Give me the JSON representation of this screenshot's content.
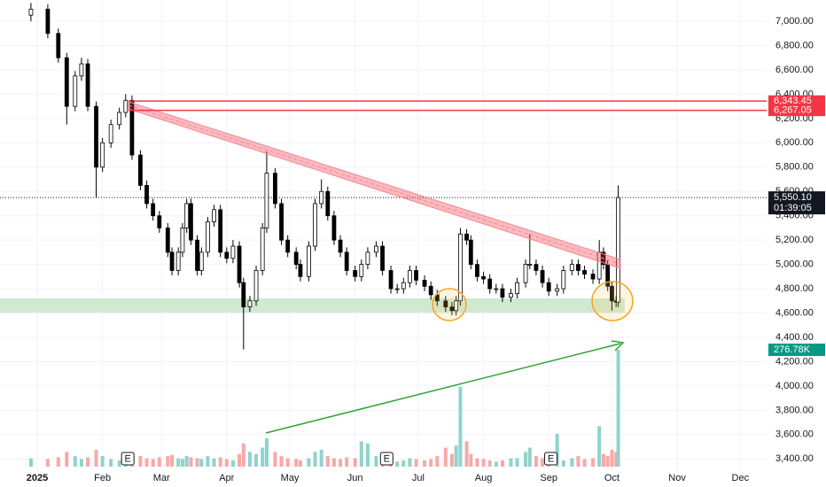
{
  "chart_data": {
    "type": "candlestick",
    "xlim": [
      -17.7,
      346.5
    ],
    "ylim": [
      3300,
      7175
    ],
    "grid": true,
    "xticks": [
      {
        "value": 0,
        "label": "2025"
      },
      {
        "value": 31,
        "label": "Feb"
      },
      {
        "value": 59,
        "label": "Mar"
      },
      {
        "value": 90,
        "label": "Apr"
      },
      {
        "value": 120,
        "label": "May"
      },
      {
        "value": 151,
        "label": "Jun"
      },
      {
        "value": 181,
        "label": "Jul"
      },
      {
        "value": 212,
        "label": "Aug"
      },
      {
        "value": 243,
        "label": "Sep"
      },
      {
        "value": 273,
        "label": "Oct"
      },
      {
        "value": 304,
        "label": "Nov"
      },
      {
        "value": 334,
        "label": "Dec"
      }
    ],
    "yticks": [
      {
        "value": 3400,
        "label": "3,400.00"
      },
      {
        "value": 3600,
        "label": "3,600.00"
      },
      {
        "value": 3800,
        "label": "3,800.00"
      },
      {
        "value": 4000,
        "label": "4,000.00"
      },
      {
        "value": 4200,
        "label": "4,200.00"
      },
      {
        "value": 4400,
        "label": "4,400.00"
      },
      {
        "value": 4600,
        "label": "4,600.00"
      },
      {
        "value": 4800,
        "label": "4,800.00"
      },
      {
        "value": 5000,
        "label": "5,000.00"
      },
      {
        "value": 5200,
        "label": "5,200.00"
      },
      {
        "value": 5400,
        "label": "5,400.00"
      },
      {
        "value": 5600,
        "label": "5,600.00"
      },
      {
        "value": 5800,
        "label": "5,800.00"
      },
      {
        "value": 6000,
        "label": "6,000.00"
      },
      {
        "value": 6200,
        "label": "6,200.00"
      },
      {
        "value": 6400,
        "label": "6,400.00"
      },
      {
        "value": 6600,
        "label": "6,600.00"
      },
      {
        "value": 6800,
        "label": "6,800.00"
      },
      {
        "value": 7000,
        "label": "7,000.00"
      }
    ],
    "up_color": "#ffffff",
    "down_color": "#000000",
    "candles": {
      "x": [
        -3,
        5,
        10,
        14,
        18,
        21,
        24,
        28,
        31,
        35,
        39,
        42,
        45,
        49,
        52,
        55,
        58,
        62,
        64,
        67,
        69,
        71,
        73,
        76,
        78,
        81,
        84,
        87,
        90,
        93,
        96,
        98,
        101,
        104,
        107,
        109,
        113,
        116,
        119,
        123,
        125,
        129,
        132,
        135,
        138,
        141,
        144,
        147,
        151,
        154,
        157,
        161,
        164,
        168,
        171,
        174,
        177,
        180,
        184,
        187,
        190,
        194,
        197,
        199,
        201,
        204,
        206,
        209,
        212,
        215,
        218,
        221,
        225,
        228,
        232,
        234,
        237,
        240,
        243,
        247,
        250,
        254,
        257,
        260,
        264,
        267,
        269,
        271,
        273,
        275,
        276
      ],
      "open": [
        7050,
        7100,
        6900,
        6700,
        6300,
        6550,
        6650,
        6300,
        5800,
        6000,
        6150,
        6250,
        6350,
        5900,
        5650,
        5500,
        5400,
        5300,
        5100,
        4950,
        5100,
        5300,
        5500,
        5200,
        4950,
        5100,
        5350,
        5450,
        5100,
        5050,
        5150,
        4850,
        4650,
        4700,
        4950,
        5300,
        5750,
        5500,
        5200,
        5100,
        5000,
        4900,
        5150,
        5500,
        5600,
        5400,
        5200,
        5100,
        4950,
        4900,
        5000,
        5100,
        5150,
        4950,
        4800,
        4800,
        4850,
        4950,
        4870,
        4820,
        4750,
        4700,
        4650,
        4620,
        4700,
        5250,
        5200,
        5000,
        4900,
        4880,
        4800,
        4800,
        4730,
        4760,
        4850,
        5000,
        5000,
        4950,
        4850,
        4780,
        4800,
        4950,
        5000,
        4950,
        4920,
        4880,
        5100,
        5000,
        4820,
        4700,
        4690
      ],
      "high": [
        7150,
        7140,
        6940,
        6740,
        6590,
        6700,
        6690,
        6340,
        6040,
        6190,
        6290,
        6400,
        6390,
        5940,
        5690,
        5540,
        5440,
        5340,
        5140,
        5140,
        5340,
        5540,
        5540,
        5240,
        5140,
        5390,
        5490,
        5490,
        5140,
        5200,
        5190,
        4890,
        4740,
        4990,
        5340,
        5930,
        5790,
        5540,
        5240,
        5140,
        5040,
        5190,
        5540,
        5700,
        5640,
        5440,
        5240,
        5140,
        4990,
        5040,
        5140,
        5190,
        5190,
        4990,
        4840,
        4890,
        4990,
        4990,
        4910,
        4860,
        4790,
        4740,
        4690,
        4740,
        5300,
        5290,
        5240,
        5040,
        4940,
        4920,
        4840,
        4840,
        4800,
        4890,
        5040,
        5250,
        5040,
        4990,
        4890,
        4840,
        4990,
        5040,
        5040,
        4990,
        4960,
        5200,
        5140,
        5040,
        4860,
        4740,
        5650
      ],
      "low": [
        7000,
        6860,
        6660,
        6150,
        6260,
        6510,
        6260,
        5550,
        5760,
        5960,
        6110,
        6210,
        5860,
        5610,
        5460,
        5360,
        5260,
        5060,
        4910,
        4910,
        5060,
        5260,
        5160,
        4910,
        4910,
        5060,
        5310,
        5060,
        5010,
        5010,
        4810,
        4300,
        4610,
        4660,
        4910,
        5260,
        5460,
        5160,
        5060,
        4960,
        4860,
        4860,
        5110,
        5460,
        5360,
        5160,
        5060,
        4910,
        4860,
        4860,
        4960,
        5060,
        4910,
        4760,
        4760,
        4760,
        4810,
        4830,
        4780,
        4710,
        4660,
        4610,
        4580,
        4580,
        4660,
        5160,
        4960,
        4860,
        4840,
        4760,
        4760,
        4690,
        4690,
        4720,
        4810,
        4960,
        4910,
        4810,
        4740,
        4740,
        4760,
        4910,
        4910,
        4880,
        4840,
        4840,
        4960,
        4780,
        4620,
        4650,
        4650
      ],
      "close": [
        7100,
        6900,
        6700,
        6300,
        6550,
        6650,
        6300,
        5800,
        6000,
        6150,
        6250,
        6350,
        5900,
        5650,
        5500,
        5400,
        5300,
        5100,
        4950,
        5100,
        5300,
        5500,
        5200,
        4950,
        5100,
        5350,
        5450,
        5100,
        5050,
        5150,
        4850,
        4650,
        4700,
        4950,
        5300,
        5750,
        5500,
        5200,
        5100,
        5000,
        4900,
        5150,
        5500,
        5600,
        5400,
        5200,
        5100,
        4950,
        4900,
        5000,
        5100,
        5150,
        4950,
        4800,
        4800,
        4850,
        4950,
        4870,
        4820,
        4750,
        4700,
        4650,
        4620,
        4700,
        5250,
        5200,
        5000,
        4900,
        4880,
        4800,
        4800,
        4730,
        4760,
        4850,
        5000,
        5000,
        4950,
        4850,
        4780,
        4800,
        4950,
        5000,
        4950,
        4920,
        4880,
        5100,
        5000,
        4820,
        4700,
        4690,
        5550.1
      ]
    },
    "volume": {
      "lim": [
        0,
        300
      ],
      "up_color": "#8fd3cd",
      "down_color": "#f7a9a7",
      "values": [
        20,
        18,
        22,
        35,
        25,
        18,
        22,
        40,
        25,
        18,
        15,
        22,
        30,
        25,
        20,
        18,
        22,
        25,
        28,
        20,
        18,
        25,
        22,
        20,
        18,
        25,
        20,
        22,
        18,
        15,
        30,
        55,
        35,
        30,
        45,
        67,
        35,
        25,
        20,
        18,
        15,
        20,
        35,
        40,
        25,
        20,
        18,
        22,
        20,
        60,
        55,
        25,
        20,
        15,
        12,
        15,
        20,
        18,
        15,
        18,
        25,
        45,
        30,
        50,
        189,
        60,
        30,
        20,
        18,
        15,
        12,
        15,
        20,
        20,
        35,
        45,
        25,
        20,
        18,
        78,
        15,
        20,
        25,
        18,
        20,
        96,
        30,
        25,
        40,
        35,
        276.78
      ],
      "last_label": "276.78K",
      "label_color": "#089981"
    },
    "levels": [
      {
        "value": 6343.45,
        "label": "6,343.45"
      },
      {
        "value": 6267.05,
        "label": "6,267.05"
      }
    ],
    "level_color": "#f23645",
    "last_price": {
      "value": 5550.1,
      "label": "5,550.10"
    },
    "countdown": "01:39:05",
    "events": [
      {
        "x": 43,
        "label": "E"
      },
      {
        "x": 166,
        "label": "E"
      },
      {
        "x": 244,
        "label": "E"
      }
    ]
  }
}
